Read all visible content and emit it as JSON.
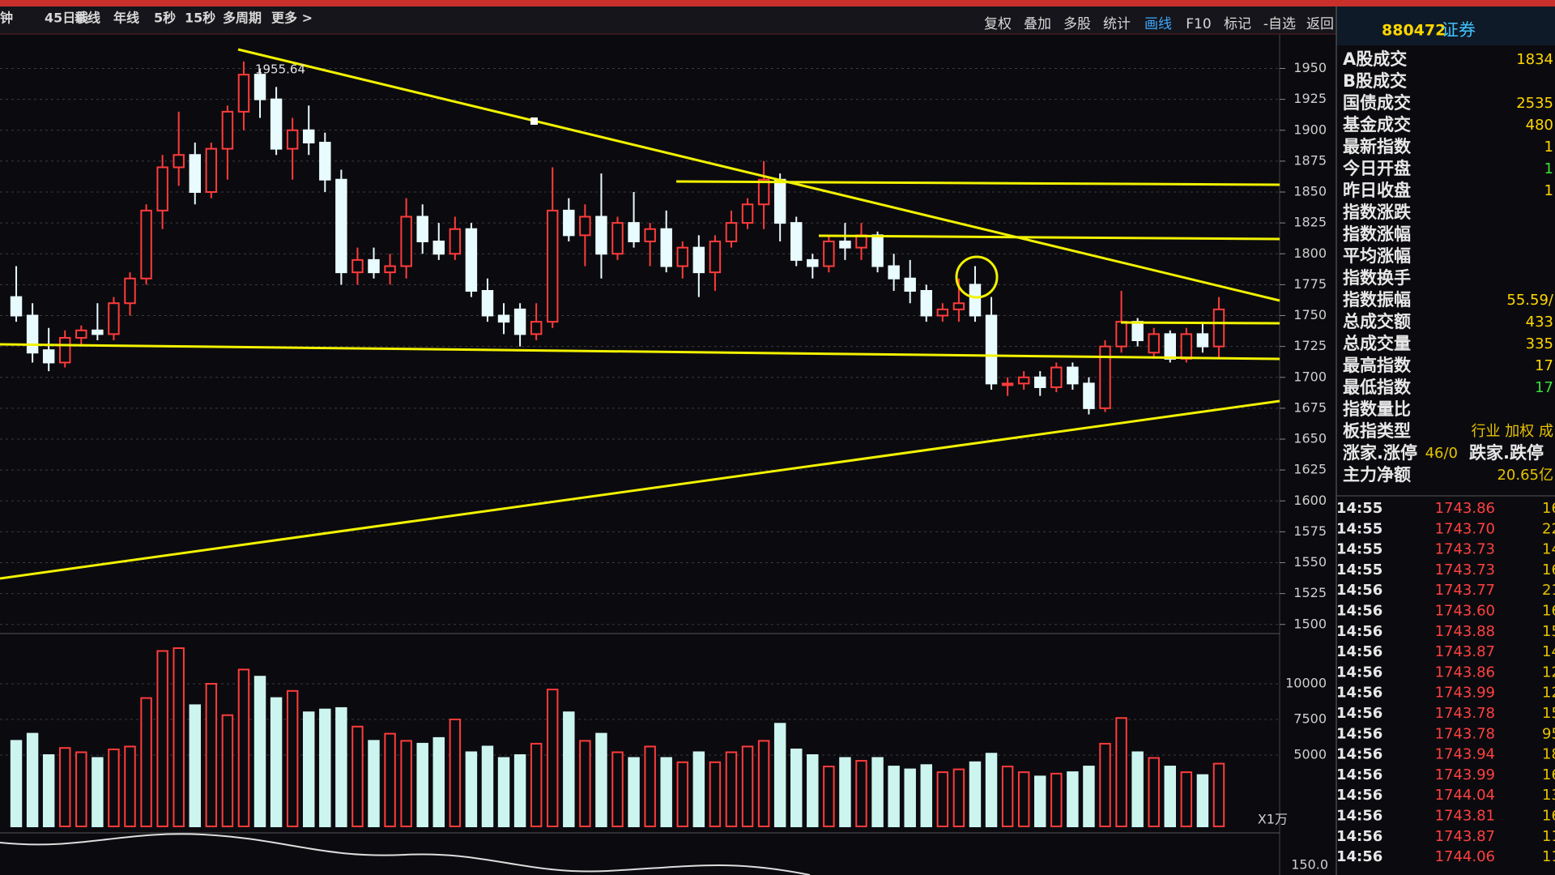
{
  "toolbar": {
    "left": [
      "钟",
      "45日线",
      "季线",
      "年线",
      "5秒",
      "15秒",
      "多周期",
      "更多 >"
    ],
    "right": [
      "复权",
      "叠加",
      "多股",
      "统计",
      "画线",
      "F10",
      "标记",
      "-自选",
      "返回"
    ]
  },
  "header": {
    "code": "880472",
    "name": "证券"
  },
  "chart_data": [
    {
      "type": "candlestick",
      "annotation": "1955.64",
      "ylim": [
        1490,
        1970
      ],
      "yticks": [
        1500,
        1525,
        1550,
        1575,
        1600,
        1625,
        1650,
        1675,
        1700,
        1725,
        1750,
        1775,
        1800,
        1825,
        1850,
        1875,
        1900,
        1925,
        1950
      ],
      "grid": true,
      "up_color": "#ff3b3b",
      "down_color": "#e8fbff",
      "ohlc": [
        [
          1765,
          1790,
          1745,
          1750
        ],
        [
          1750,
          1760,
          1712,
          1720
        ],
        [
          1722,
          1740,
          1705,
          1712
        ],
        [
          1712,
          1738,
          1708,
          1732
        ],
        [
          1732,
          1742,
          1725,
          1738
        ],
        [
          1738,
          1760,
          1730,
          1735
        ],
        [
          1735,
          1765,
          1730,
          1760
        ],
        [
          1760,
          1785,
          1750,
          1780
        ],
        [
          1780,
          1840,
          1775,
          1835
        ],
        [
          1835,
          1880,
          1820,
          1870
        ],
        [
          1870,
          1915,
          1855,
          1880
        ],
        [
          1880,
          1890,
          1840,
          1850
        ],
        [
          1850,
          1890,
          1845,
          1885
        ],
        [
          1885,
          1920,
          1860,
          1915
        ],
        [
          1915,
          1955.64,
          1900,
          1945
        ],
        [
          1945,
          1950,
          1910,
          1925
        ],
        [
          1925,
          1935,
          1880,
          1885
        ],
        [
          1885,
          1910,
          1860,
          1900
        ],
        [
          1900,
          1920,
          1880,
          1890
        ],
        [
          1890,
          1898,
          1850,
          1860
        ],
        [
          1860,
          1868,
          1775,
          1785
        ],
        [
          1785,
          1805,
          1775,
          1795
        ],
        [
          1795,
          1805,
          1780,
          1785
        ],
        [
          1785,
          1800,
          1775,
          1790
        ],
        [
          1790,
          1845,
          1780,
          1830
        ],
        [
          1830,
          1840,
          1800,
          1810
        ],
        [
          1810,
          1825,
          1795,
          1800
        ],
        [
          1800,
          1830,
          1795,
          1820
        ],
        [
          1820,
          1825,
          1765,
          1770
        ],
        [
          1770,
          1780,
          1745,
          1750
        ],
        [
          1750,
          1760,
          1735,
          1745
        ],
        [
          1755,
          1760,
          1725,
          1735
        ],
        [
          1735,
          1760,
          1730,
          1745
        ],
        [
          1745,
          1870,
          1740,
          1835
        ],
        [
          1835,
          1845,
          1810,
          1815
        ],
        [
          1815,
          1840,
          1790,
          1830
        ],
        [
          1830,
          1865,
          1780,
          1800
        ],
        [
          1800,
          1830,
          1795,
          1825
        ],
        [
          1825,
          1850,
          1805,
          1810
        ],
        [
          1810,
          1825,
          1790,
          1820
        ],
        [
          1820,
          1835,
          1785,
          1790
        ],
        [
          1790,
          1810,
          1780,
          1805
        ],
        [
          1805,
          1815,
          1765,
          1785
        ],
        [
          1785,
          1815,
          1770,
          1810
        ],
        [
          1810,
          1835,
          1805,
          1825
        ],
        [
          1825,
          1845,
          1820,
          1840
        ],
        [
          1840,
          1875,
          1820,
          1860
        ],
        [
          1860,
          1865,
          1810,
          1825
        ],
        [
          1825,
          1830,
          1790,
          1795
        ],
        [
          1795,
          1800,
          1780,
          1790
        ],
        [
          1790,
          1815,
          1785,
          1810
        ],
        [
          1810,
          1825,
          1795,
          1805
        ],
        [
          1805,
          1825,
          1795,
          1815
        ],
        [
          1815,
          1818,
          1785,
          1790
        ],
        [
          1790,
          1800,
          1770,
          1780
        ],
        [
          1780,
          1795,
          1760,
          1770
        ],
        [
          1770,
          1775,
          1745,
          1750
        ],
        [
          1750,
          1760,
          1745,
          1755
        ],
        [
          1755,
          1780,
          1745,
          1760
        ],
        [
          1775,
          1790,
          1745,
          1750
        ],
        [
          1750,
          1765,
          1690,
          1695
        ],
        [
          1695,
          1700,
          1685,
          1695
        ],
        [
          1695,
          1705,
          1690,
          1700
        ],
        [
          1700,
          1705,
          1685,
          1692
        ],
        [
          1692,
          1712,
          1688,
          1708
        ],
        [
          1708,
          1712,
          1690,
          1695
        ],
        [
          1695,
          1700,
          1670,
          1675
        ],
        [
          1675,
          1730,
          1672,
          1725
        ],
        [
          1725,
          1770,
          1720,
          1745
        ],
        [
          1745,
          1748,
          1725,
          1730
        ],
        [
          1720,
          1740,
          1715,
          1735
        ],
        [
          1735,
          1738,
          1712,
          1715
        ],
        [
          1715,
          1740,
          1712,
          1735
        ],
        [
          1735,
          1745,
          1720,
          1725
        ],
        [
          1725,
          1765,
          1715,
          1755
        ]
      ]
    },
    {
      "type": "bar",
      "unit_label": "X1万",
      "ylim": [
        0,
        12500
      ],
      "yticks": [
        5000,
        7500,
        10000
      ],
      "values": [
        6000,
        6500,
        5000,
        5500,
        5200,
        4800,
        5400,
        5600,
        9000,
        12300,
        12500,
        8500,
        10000,
        7800,
        11000,
        10500,
        9000,
        9500,
        8000,
        8200,
        8300,
        7000,
        6000,
        6500,
        6000,
        5800,
        6200,
        7500,
        5200,
        5600,
        4800,
        5000,
        5800,
        9600,
        8000,
        6000,
        6500,
        5200,
        4800,
        5600,
        4800,
        4500,
        5200,
        4500,
        5200,
        5600,
        6000,
        7200,
        5400,
        5000,
        4200,
        4800,
        4600,
        4800,
        4200,
        4000,
        4300,
        3800,
        4000,
        4500,
        5100,
        4200,
        3800,
        3500,
        3700,
        3800,
        4200,
        5800,
        7600,
        5200,
        4800,
        4200,
        3800,
        3600,
        4400
      ]
    }
  ],
  "lower_indicator": {
    "label": "150.0"
  },
  "side_panel": {
    "rows": [
      {
        "label": "A股成交",
        "value": "1834"
      },
      {
        "label": "B股成交"
      },
      {
        "label": "国债成交",
        "value": "2535"
      },
      {
        "label": "基金成交",
        "value": "480"
      },
      {
        "label": "最新指数",
        "value": "1"
      },
      {
        "label": "今日开盘",
        "value": "1"
      },
      {
        "label": "昨日收盘",
        "value": "1"
      },
      {
        "label": "指数涨跌"
      },
      {
        "label": "指数涨幅"
      },
      {
        "label": "平均涨幅"
      },
      {
        "label": "指数换手"
      },
      {
        "label": "指数振幅",
        "value": "55.59/"
      },
      {
        "label": "总成交额",
        "value": "433"
      },
      {
        "label": "总成交量",
        "value": "335"
      },
      {
        "label": "最高指数",
        "value": "17"
      },
      {
        "label": "最低指数",
        "value": "17"
      },
      {
        "label": "指数量比"
      },
      {
        "label": "板指类型",
        "value": "行业 加权 成"
      },
      {
        "label": "涨家.涨停",
        "value": "46/0",
        "extra": "跌家.跌停"
      },
      {
        "label": "主力净额",
        "value": "20.65亿"
      }
    ],
    "ticks": [
      [
        "14:55",
        "1743.86",
        "16"
      ],
      [
        "14:55",
        "1743.70",
        "22"
      ],
      [
        "14:55",
        "1743.73",
        "14"
      ],
      [
        "14:55",
        "1743.73",
        "16"
      ],
      [
        "14:56",
        "1743.77",
        "21"
      ],
      [
        "14:56",
        "1743.60",
        "16"
      ],
      [
        "14:56",
        "1743.88",
        "15"
      ],
      [
        "14:56",
        "1743.87",
        "14"
      ],
      [
        "14:56",
        "1743.86",
        "12"
      ],
      [
        "14:56",
        "1743.99",
        "12"
      ],
      [
        "14:56",
        "1743.78",
        "15"
      ],
      [
        "14:56",
        "1743.78",
        "95"
      ],
      [
        "14:56",
        "1743.94",
        "18"
      ],
      [
        "14:56",
        "1743.99",
        "16"
      ],
      [
        "14:56",
        "1744.04",
        "13"
      ],
      [
        "14:56",
        "1743.81",
        "16"
      ],
      [
        "14:56",
        "1743.87",
        "11"
      ],
      [
        "14:56",
        "1744.06",
        "11"
      ]
    ]
  }
}
